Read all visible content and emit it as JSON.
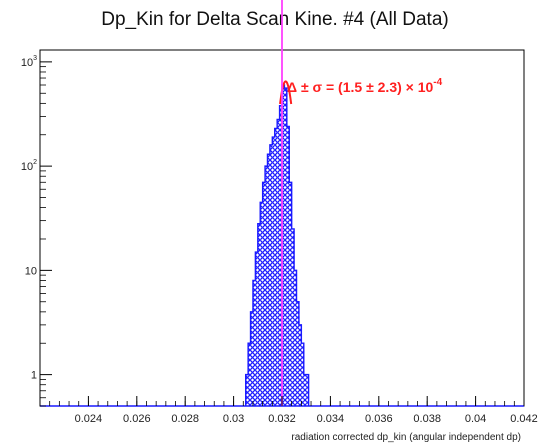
{
  "chart_data": {
    "type": "bar",
    "title": "Dp_Kin for Delta Scan Kine. #4 (All Data)",
    "xlabel": "radiation corrected dp_kin (angular independent dp)",
    "ylabel": "",
    "xlim": [
      0.022,
      0.042
    ],
    "ylim": [
      0.5,
      1300
    ],
    "yscale": "log",
    "grid": false,
    "xticks": [
      "0.024",
      "0.026",
      "0.028",
      "0.03",
      "0.032",
      "0.034",
      "0.036",
      "0.038",
      "0.04",
      "0.042"
    ],
    "xtick_values": [
      0.024,
      0.026,
      0.028,
      0.03,
      0.032,
      0.034,
      0.036,
      0.038,
      0.04,
      0.042
    ],
    "yticks_major": [
      {
        "value": 1,
        "label": "1"
      },
      {
        "value": 10,
        "label": "10"
      },
      {
        "value": 100,
        "label": "10",
        "exp": "2"
      },
      {
        "value": 1000,
        "label": "10",
        "exp": "3"
      }
    ],
    "histogram": {
      "name": "",
      "color": "#1a1aff",
      "bin_edges": [
        0.0305,
        0.0306,
        0.0307,
        0.0308,
        0.0309,
        0.031,
        0.0311,
        0.0312,
        0.0313,
        0.0314,
        0.0315,
        0.0316,
        0.0317,
        0.0318,
        0.0319,
        0.032,
        0.0321,
        0.0322,
        0.0323,
        0.0324,
        0.0325,
        0.0326,
        0.0327,
        0.0328,
        0.0329,
        0.033,
        0.0331
      ],
      "counts": [
        1,
        2,
        4,
        8,
        15,
        28,
        45,
        70,
        100,
        130,
        160,
        190,
        230,
        280,
        380,
        600,
        560,
        240,
        70,
        25,
        10,
        5,
        3,
        2,
        1,
        1
      ]
    },
    "fit": {
      "color": "#ff2020",
      "mean": 0.03215,
      "sigma": 0.00023,
      "peak": 650
    },
    "marker_line": {
      "x": 0.032,
      "color": "#ff40ff"
    },
    "annotation": {
      "text": "Δ ± σ = (1.5 ± 2.3) × 10",
      "exp": "-4",
      "color": "#ff2020"
    }
  }
}
